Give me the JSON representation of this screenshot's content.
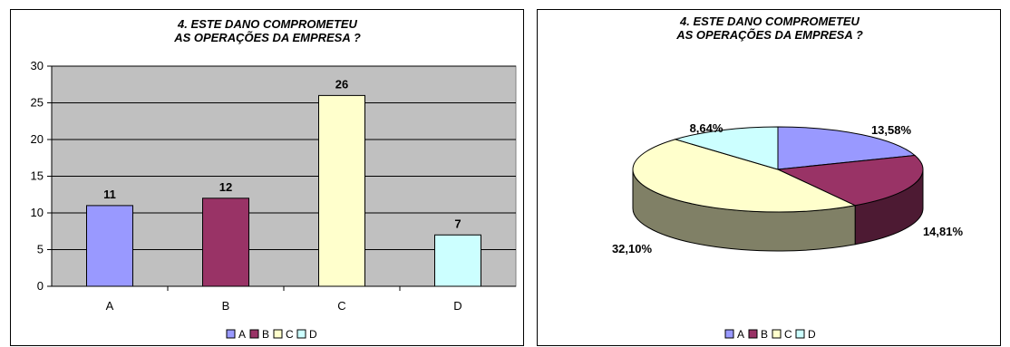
{
  "charts": {
    "bar": {
      "chart_data": {
        "type": "bar",
        "title_lines": [
          "4. ESTE DANO COMPROMETEU",
          "AS OPERAÇÕES DA EMPRESA ?"
        ],
        "categories": [
          "A",
          "B",
          "C",
          "D"
        ],
        "values": [
          11,
          12,
          26,
          7
        ],
        "colors": [
          "#9999ff",
          "#993366",
          "#ffffcc",
          "#ccffff"
        ],
        "ylim": [
          0,
          30
        ],
        "yticks": [
          0,
          5,
          10,
          15,
          20,
          25,
          30
        ],
        "grid": true,
        "plot_background": "#c0c0c0",
        "legend_position": "bottom"
      }
    },
    "pie": {
      "chart_data": {
        "type": "pie",
        "title_lines": [
          "4. ESTE DANO COMPROMETEU",
          "AS OPERAÇÕES DA EMPRESA ?"
        ],
        "categories": [
          "A",
          "B",
          "C",
          "D"
        ],
        "values": [
          13.58,
          14.81,
          32.1,
          8.64
        ],
        "labels": [
          "13,58%",
          "14,81%",
          "32,10%",
          "8,64%"
        ],
        "colors": [
          "#9999ff",
          "#993366",
          "#ffffcc",
          "#ccffff"
        ],
        "side_colors": [
          "#4d4d80",
          "#4d1a33",
          "#808066",
          "#668080"
        ],
        "style": "3d",
        "legend_position": "bottom"
      }
    }
  }
}
